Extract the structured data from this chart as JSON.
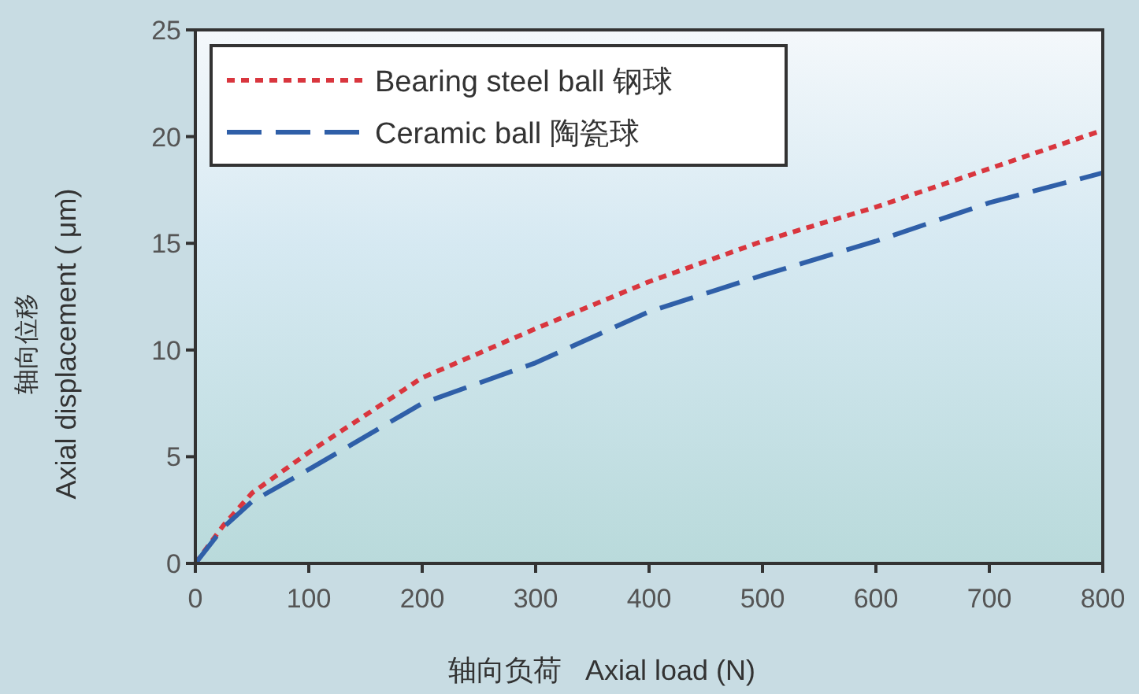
{
  "chart_data": {
    "type": "line",
    "xlabel": "轴向负荷   Axial load (N)",
    "ylabel": "轴向位移\nAxial displacement ( μm)",
    "x": [
      0,
      25,
      50,
      100,
      200,
      300,
      400,
      500,
      600,
      700,
      800
    ],
    "xlim": [
      0,
      800
    ],
    "xticks": [
      0,
      100,
      200,
      300,
      400,
      500,
      600,
      700,
      800
    ],
    "ylim": [
      0,
      25
    ],
    "yticks": [
      0,
      5,
      10,
      15,
      20,
      25
    ],
    "grid": false,
    "legend": "top left",
    "marker": "none",
    "series": [
      {
        "name": "Bearing steel ball 钢球",
        "color": "#d9363e",
        "line_style": "dotted",
        "values": [
          0,
          1.8,
          3.3,
          5.2,
          8.7,
          11.0,
          13.2,
          15.1,
          16.7,
          18.5,
          20.3
        ]
      },
      {
        "name": "Ceramic ball 陶瓷球",
        "color": "#2f5fa8",
        "line_style": "dashed",
        "values": [
          0,
          1.7,
          2.9,
          4.4,
          7.5,
          9.4,
          11.8,
          13.5,
          15.1,
          16.9,
          18.3
        ]
      }
    ]
  }
}
